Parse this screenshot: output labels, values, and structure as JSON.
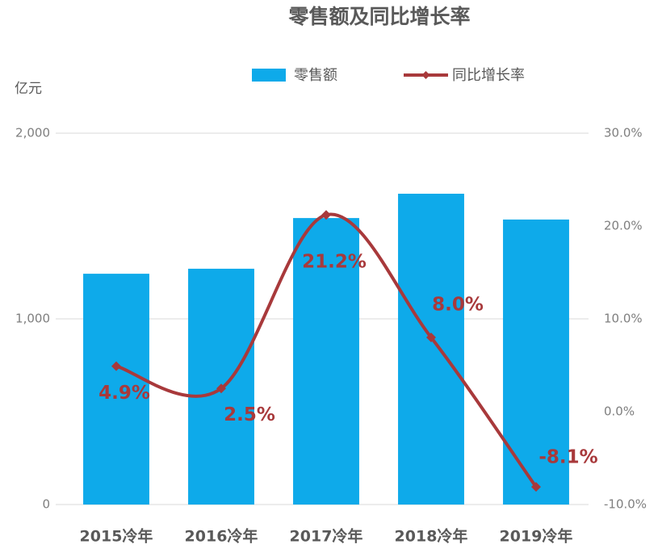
{
  "chart_data": {
    "type": "bar",
    "title": "零售额及同比增长率",
    "y_unit": "亿元",
    "categories": [
      "2015冷年",
      "2016冷年",
      "2017冷年",
      "2018冷年",
      "2019冷年"
    ],
    "series": [
      {
        "name": "零售额",
        "color": "#0eaaea",
        "values": [
          1243,
          1270,
          1543,
          1674,
          1535
        ]
      },
      {
        "name": "同比增长率",
        "type": "line",
        "axis": "y2",
        "color": "#a8393b",
        "values": [
          4.9,
          2.5,
          21.2,
          8.0,
          -8.1
        ],
        "value_labels": [
          "4.9%",
          "2.5%",
          "21.2%",
          "8.0%",
          "-8.1%"
        ]
      }
    ],
    "ylim": [
      0,
      2000
    ],
    "yticks": [
      0,
      {
        "value": 1000,
        "label": "1,000"
      },
      {
        "value": 2000,
        "label": "2,000"
      }
    ],
    "y2lim": [
      -10,
      30
    ],
    "y2ticks": [
      {
        "value": -10,
        "label": "-10.0%"
      },
      {
        "value": 0,
        "label": "0.0%"
      },
      {
        "value": 10,
        "label": "10.0%"
      },
      {
        "value": 20,
        "label": "20.0%"
      },
      {
        "value": 30,
        "label": "30.0%"
      }
    ],
    "grid": true,
    "legend": "top"
  }
}
